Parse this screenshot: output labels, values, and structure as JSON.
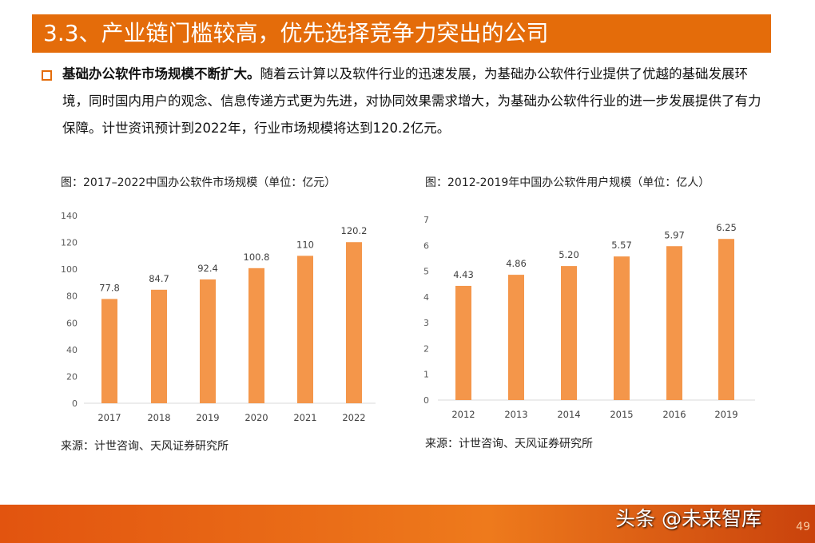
{
  "header": {
    "title": "3.3、产业链门槛较高，优先选择竞争力突出的公司"
  },
  "paragraph": {
    "bold": "基础办公软件市场规模不断扩大。",
    "text": "随着云计算以及软件行业的迅速发展，为基础办公软件行业提供了优越的基础发展环境，同时国内用户的观念、信息传递方式更为先进，对协同效果需求增大，为基础办公软件行业的进一步发展提供了有力保障。计世资讯预计到2022年，行业市场规模将达到120.2亿元。"
  },
  "chart_data": [
    {
      "type": "bar",
      "title": "图：2017–2022中国办公软件市场规模（单位：亿元）",
      "categories": [
        "2017",
        "2018",
        "2019",
        "2020",
        "2021",
        "2022"
      ],
      "values": [
        77.8,
        84.7,
        92.4,
        100.8,
        110,
        120.2
      ],
      "value_labels": [
        "77.8",
        "84.7",
        "92.4",
        "100.8",
        "110",
        "120.2"
      ],
      "ylim": [
        0,
        140
      ],
      "yticks": [
        "0",
        "20",
        "40",
        "60",
        "80",
        "100",
        "120",
        "140"
      ],
      "grid": false,
      "color": "#F4964A",
      "source": "来源：计世咨询、天风证券研究所"
    },
    {
      "type": "bar",
      "title": "图：2012-2019年中国办公软件用户规模（单位：亿人）",
      "categories": [
        "2012",
        "2013",
        "2014",
        "2015",
        "2016",
        "2019"
      ],
      "values": [
        4.43,
        4.86,
        5.2,
        5.57,
        5.97,
        6.25
      ],
      "value_labels": [
        "4.43",
        "4.86",
        "5.20",
        "5.57",
        "5.97",
        "6.25"
      ],
      "ylim": [
        0,
        7
      ],
      "yticks": [
        "0",
        "1",
        "2",
        "3",
        "4",
        "5",
        "6",
        "7"
      ],
      "grid": false,
      "color": "#F4964A",
      "source": "来源：计世咨询、天风证券研究所"
    }
  ],
  "footer": {
    "watermark": "头条 @未来智库",
    "page": "49",
    "accent": "#E46C0A"
  }
}
